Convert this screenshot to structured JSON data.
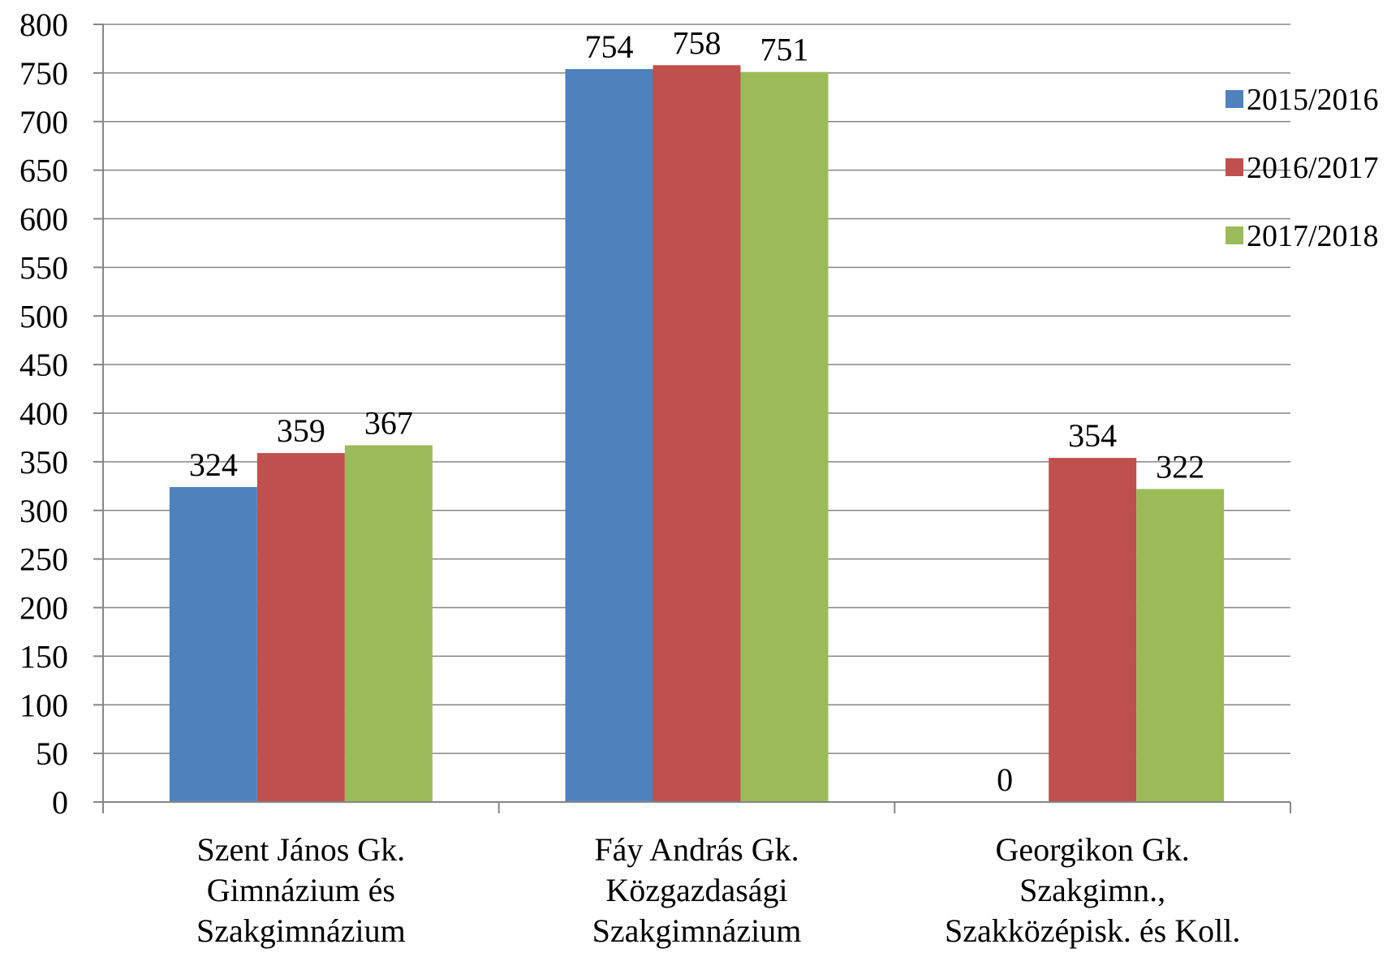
{
  "chart_data": {
    "type": "bar",
    "title": "",
    "xlabel": "",
    "ylabel": "",
    "ylim": [
      0,
      800
    ],
    "ytick_step": 50,
    "grid": true,
    "legend_position": "right",
    "categories": [
      [
        "Szent János Gk.",
        "Gimnázium és",
        "Szakgimnázium"
      ],
      [
        "Fáy András Gk.",
        "Közgazdasági",
        "Szakgimnázium"
      ],
      [
        "Georgikon Gk.",
        "Szakgimn.,",
        "Szakközépisk. és Koll."
      ]
    ],
    "series": [
      {
        "name": "2015/2016",
        "color": "#4F81BD",
        "values": [
          324,
          754,
          0
        ]
      },
      {
        "name": "2016/2017",
        "color": "#C0504D",
        "values": [
          359,
          758,
          354
        ]
      },
      {
        "name": "2017/2018",
        "color": "#9BBB59",
        "values": [
          367,
          751,
          322
        ]
      }
    ]
  }
}
